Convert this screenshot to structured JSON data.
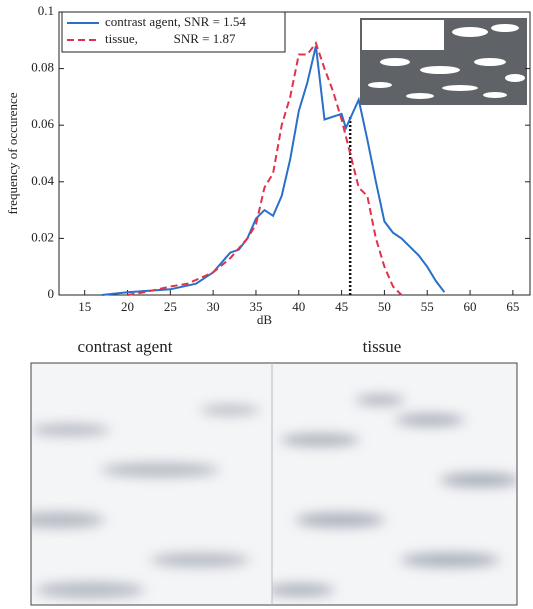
{
  "chart_data": {
    "type": "line",
    "x_label": "dB",
    "y_label": "frequency of occurence",
    "xlim": [
      12,
      67
    ],
    "xticks": [
      15,
      20,
      25,
      30,
      35,
      40,
      45,
      50,
      55,
      60,
      65
    ],
    "ylim": [
      0,
      0.1
    ],
    "yticks": [
      0,
      0.02,
      0.04,
      0.06,
      0.08,
      0.1
    ],
    "legend": "upper left",
    "series": [
      {
        "name": "contrast agent, SNR = 1.54",
        "color": "#2a6fc9",
        "dash": false,
        "x": [
          17,
          20,
          25,
          28,
          30,
          32,
          33,
          34,
          35,
          36,
          37,
          38,
          39,
          40,
          41,
          42,
          43,
          44,
          45,
          45.5,
          47,
          48,
          49,
          50,
          51,
          52,
          53,
          54,
          55,
          56,
          57
        ],
        "values": [
          0,
          0.001,
          0.002,
          0.004,
          0.008,
          0.015,
          0.016,
          0.02,
          0.027,
          0.03,
          0.028,
          0.035,
          0.048,
          0.065,
          0.075,
          0.088,
          0.062,
          0.063,
          0.064,
          0.059,
          0.069,
          0.055,
          0.04,
          0.026,
          0.022,
          0.02,
          0.017,
          0.014,
          0.01,
          0.005,
          0.001
        ]
      },
      {
        "name": "tissue,           SNR = 1.87",
        "color": "#e0324a",
        "dash": true,
        "x": [
          20,
          22,
          25,
          27,
          30,
          32,
          34,
          35,
          36,
          37,
          38,
          39,
          40,
          41,
          42,
          43,
          44,
          45,
          46,
          47,
          48,
          49,
          50,
          51,
          52
        ],
        "values": [
          0,
          0.001,
          0.003,
          0.004,
          0.008,
          0.013,
          0.02,
          0.025,
          0.038,
          0.043,
          0.06,
          0.07,
          0.085,
          0.085,
          0.089,
          0.08,
          0.072,
          0.062,
          0.05,
          0.038,
          0.035,
          0.02,
          0.01,
          0.003,
          0
        ]
      }
    ],
    "threshold": {
      "x": 46,
      "top": 0.063
    }
  },
  "images": {
    "left_label": "contrast agent",
    "right_label": "tissue"
  }
}
